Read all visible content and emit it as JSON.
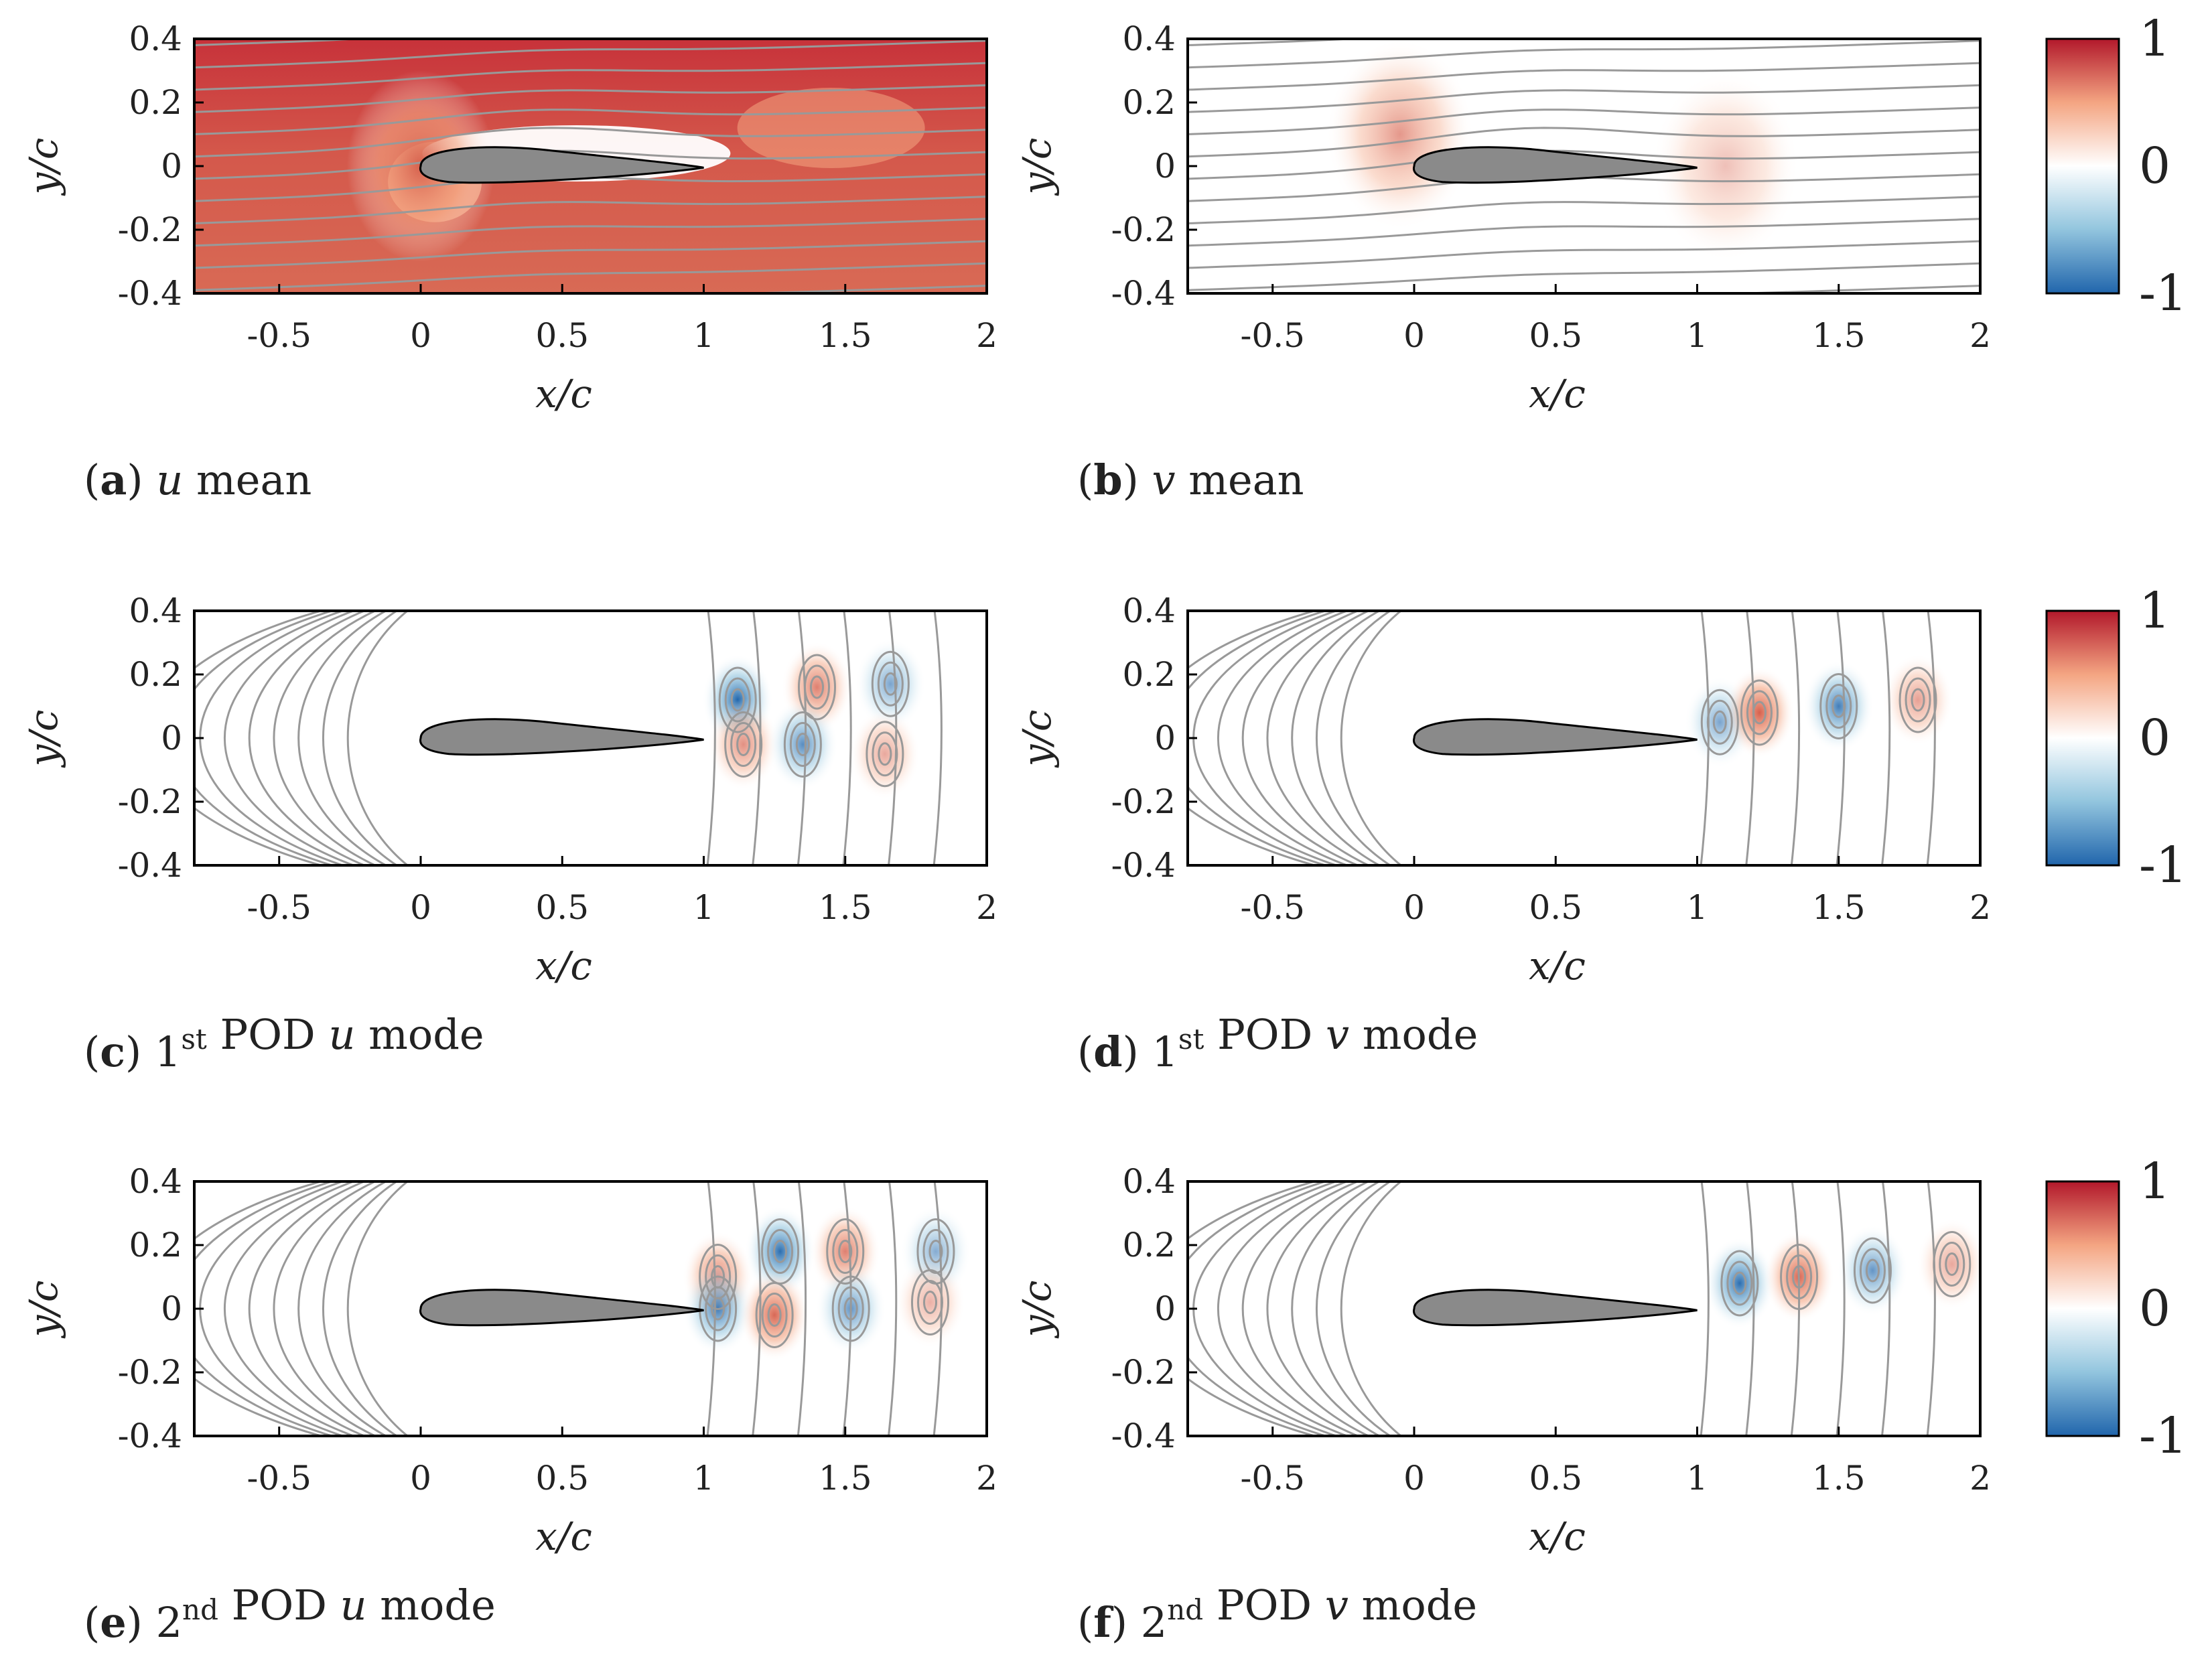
{
  "chart_data": {
    "type": "field",
    "x_ticks": [
      "-0.5",
      "0",
      "0.5",
      "1",
      "1.5",
      "2"
    ],
    "y_ticks": [
      "0.4",
      "0.2",
      "0",
      "-0.2",
      "-0.4"
    ],
    "xlim": [
      -0.8,
      2.0
    ],
    "ylim": [
      -0.4,
      0.4
    ],
    "xlabel": "x/c",
    "ylabel": "y/c",
    "colorbar": {
      "ticks": [
        "1",
        "0",
        "-1"
      ],
      "range": [
        -1,
        1
      ],
      "colormap": [
        "#2166ac",
        "#ffffff",
        "#b2182b"
      ]
    },
    "panels": [
      {
        "label": "a",
        "prefix": "",
        "sup": "",
        "mid": "",
        "var": "u",
        "suffix": " mean",
        "kind": "mean-u",
        "features": [
          {
            "x": 0.0,
            "y": 0.0,
            "sign": 1,
            "amp": 0.9
          }
        ]
      },
      {
        "label": "b",
        "prefix": "",
        "sup": "",
        "mid": "",
        "var": "v",
        "suffix": " mean",
        "kind": "mean-v",
        "features": [
          {
            "x": -0.05,
            "y": 0.1,
            "sign": 1,
            "amp": 0.55
          },
          {
            "x": 1.1,
            "y": 0.0,
            "sign": 1,
            "amp": 0.3
          }
        ]
      },
      {
        "label": "c",
        "prefix": " 1",
        "sup": "st",
        "mid": " POD ",
        "var": "u",
        "suffix": " mode",
        "kind": "mode",
        "features": [
          {
            "x": 1.12,
            "y": 0.12,
            "sign": -1,
            "amp": 0.9
          },
          {
            "x": 1.14,
            "y": -0.02,
            "sign": 1,
            "amp": 0.6
          },
          {
            "x": 1.4,
            "y": 0.16,
            "sign": 1,
            "amp": 0.7
          },
          {
            "x": 1.35,
            "y": -0.02,
            "sign": -1,
            "amp": 0.65
          },
          {
            "x": 1.66,
            "y": 0.17,
            "sign": -1,
            "amp": 0.5
          },
          {
            "x": 1.64,
            "y": -0.05,
            "sign": 1,
            "amp": 0.45
          }
        ]
      },
      {
        "label": "d",
        "prefix": " 1",
        "sup": "st",
        "mid": " POD ",
        "var": "v",
        "suffix": " mode",
        "kind": "mode",
        "features": [
          {
            "x": 1.08,
            "y": 0.05,
            "sign": -1,
            "amp": 0.5
          },
          {
            "x": 1.22,
            "y": 0.08,
            "sign": 1,
            "amp": 0.95
          },
          {
            "x": 1.5,
            "y": 0.1,
            "sign": -1,
            "amp": 0.75
          },
          {
            "x": 1.78,
            "y": 0.12,
            "sign": 1,
            "amp": 0.5
          }
        ]
      },
      {
        "label": "e",
        "prefix": " 2",
        "sup": "nd",
        "mid": " POD ",
        "var": "u",
        "suffix": " mode",
        "kind": "mode",
        "features": [
          {
            "x": 1.05,
            "y": 0.1,
            "sign": 1,
            "amp": 0.7
          },
          {
            "x": 1.05,
            "y": 0.0,
            "sign": -1,
            "amp": 0.75
          },
          {
            "x": 1.27,
            "y": 0.18,
            "sign": -1,
            "amp": 0.85
          },
          {
            "x": 1.25,
            "y": -0.02,
            "sign": 1,
            "amp": 0.85
          },
          {
            "x": 1.5,
            "y": 0.18,
            "sign": 1,
            "amp": 0.7
          },
          {
            "x": 1.52,
            "y": 0.0,
            "sign": -1,
            "amp": 0.6
          },
          {
            "x": 1.82,
            "y": 0.18,
            "sign": -1,
            "amp": 0.45
          },
          {
            "x": 1.8,
            "y": 0.02,
            "sign": 1,
            "amp": 0.4
          }
        ]
      },
      {
        "label": "f",
        "prefix": " 2",
        "sup": "nd",
        "mid": " POD ",
        "var": "v",
        "suffix": " mode",
        "kind": "mode",
        "features": [
          {
            "x": 1.15,
            "y": 0.08,
            "sign": -1,
            "amp": 0.85
          },
          {
            "x": 1.36,
            "y": 0.1,
            "sign": 1,
            "amp": 0.85
          },
          {
            "x": 1.62,
            "y": 0.12,
            "sign": -1,
            "amp": 0.6
          },
          {
            "x": 1.9,
            "y": 0.14,
            "sign": 1,
            "amp": 0.45
          }
        ]
      }
    ]
  },
  "colors": {
    "airfoil": "#8a8a8a",
    "streamline": "#999999",
    "frame": "#000000"
  }
}
